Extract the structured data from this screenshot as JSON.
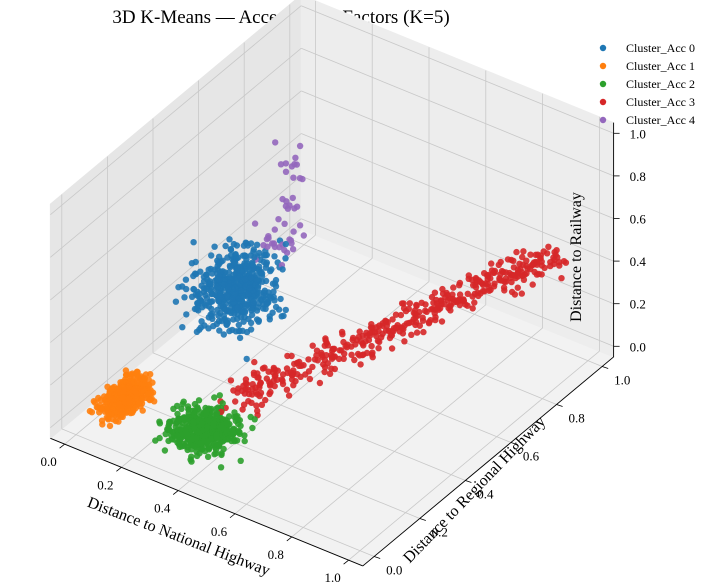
{
  "chart_data": {
    "type": "scatter",
    "projection": "3d",
    "title": "3D K-Means — Accessibility Factors (K=5)",
    "xlabel": "Distance to National Highway",
    "ylabel": "Distance to Regional Highway",
    "zlabel": "Distance to Railway",
    "xlim": [
      0,
      1
    ],
    "ylim": [
      0,
      1
    ],
    "zlim": [
      0,
      1
    ],
    "xticks": [
      "0.0",
      "0.2",
      "0.4",
      "0.6",
      "0.8",
      "1.0"
    ],
    "yticks": [
      "0.0",
      "0.2",
      "0.4",
      "0.6",
      "0.8",
      "1.0"
    ],
    "zticks": [
      "0.0",
      "0.2",
      "0.4",
      "0.6",
      "0.8",
      "1.0"
    ],
    "grid": true,
    "legend_position": "top-right",
    "series": [
      {
        "name": "Cluster_Acc 0",
        "color": "#1f77b4",
        "centroid": [
          0.22,
          0.42,
          0.38
        ],
        "spread": [
          0.12,
          0.13,
          0.12
        ],
        "approx_points": 520
      },
      {
        "name": "Cluster_Acc 1",
        "color": "#ff7f0e",
        "centroid": [
          0.08,
          0.12,
          0.06
        ],
        "spread": [
          0.05,
          0.09,
          0.05
        ],
        "approx_points": 460
      },
      {
        "name": "Cluster_Acc 2",
        "color": "#2ca02c",
        "centroid": [
          0.36,
          0.12,
          0.06
        ],
        "spread": [
          0.1,
          0.09,
          0.05
        ],
        "approx_points": 480
      },
      {
        "name": "Cluster_Acc 3",
        "color": "#d62728",
        "centroid": [
          0.55,
          0.55,
          0.22
        ],
        "spread": [
          0.18,
          0.22,
          0.08
        ],
        "approx_points": 420
      },
      {
        "name": "Cluster_Acc 4",
        "color": "#9467bd",
        "centroid": [
          0.25,
          0.55,
          0.52
        ],
        "spread": [
          0.05,
          0.05,
          0.12
        ],
        "approx_points": 45
      }
    ]
  }
}
